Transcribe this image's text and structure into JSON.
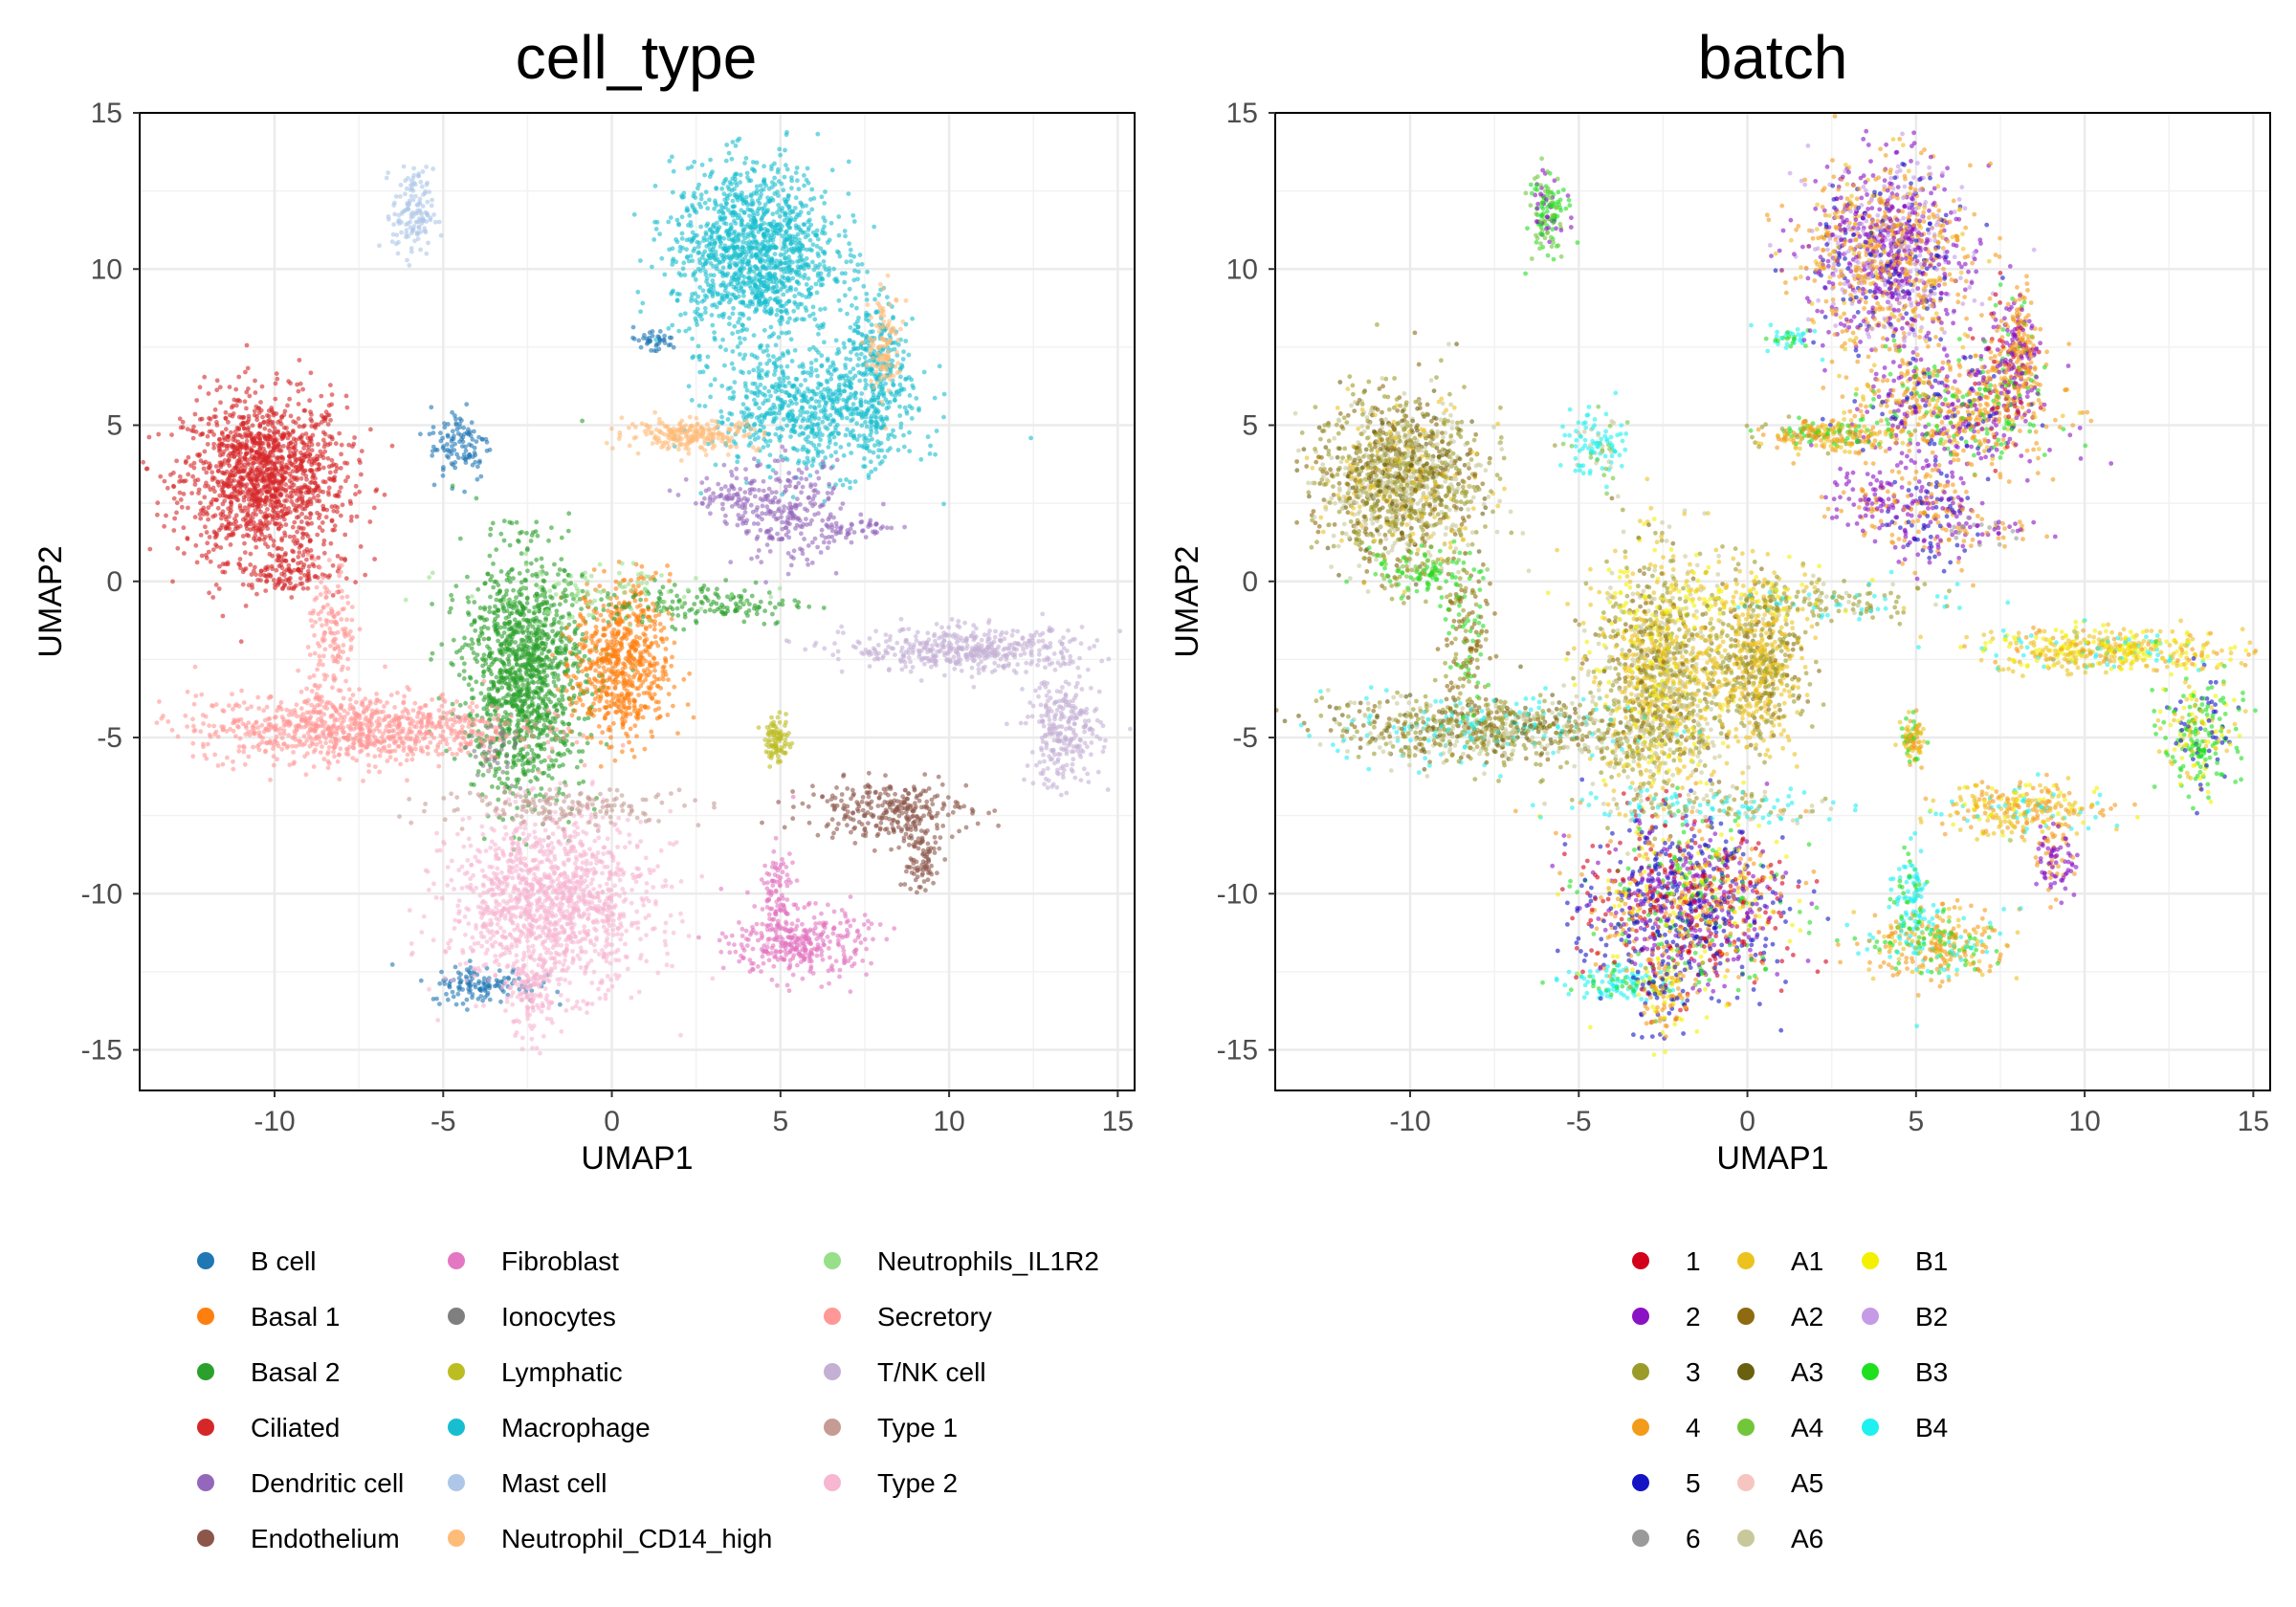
{
  "chart_data": [
    {
      "type": "scatter",
      "title": "cell_type",
      "xlabel": "UMAP1",
      "ylabel": "UMAP2",
      "xlim": [
        -14,
        15.5
      ],
      "ylim": [
        -16.3,
        15
      ],
      "xticks": [
        -10,
        -5,
        0,
        5,
        10,
        15
      ],
      "yticks": [
        -15,
        -10,
        -5,
        0,
        5,
        10,
        15
      ],
      "grid": true,
      "legend_position": "bottom",
      "legend_columns": 3,
      "categories": [
        {
          "name": "B cell",
          "color": "#1f77b4"
        },
        {
          "name": "Basal 1",
          "color": "#ff7f0e"
        },
        {
          "name": "Basal 2",
          "color": "#2ca02c"
        },
        {
          "name": "Ciliated",
          "color": "#d62728"
        },
        {
          "name": "Dendritic cell",
          "color": "#9467bd"
        },
        {
          "name": "Endothelium",
          "color": "#8c564b"
        },
        {
          "name": "Fibroblast",
          "color": "#e377c2"
        },
        {
          "name": "Ionocytes",
          "color": "#7f7f7f"
        },
        {
          "name": "Lymphatic",
          "color": "#bcbd22"
        },
        {
          "name": "Macrophage",
          "color": "#17becf"
        },
        {
          "name": "Mast cell",
          "color": "#aec7e8"
        },
        {
          "name": "Neutrophil_CD14_high",
          "color": "#ffbb78"
        },
        {
          "name": "Neutrophils_IL1R2",
          "color": "#98df8a"
        },
        {
          "name": "Secretory",
          "color": "#ff9896"
        },
        {
          "name": "T/NK cell",
          "color": "#c5b0d5"
        },
        {
          "name": "Type 1",
          "color": "#c49c94"
        },
        {
          "name": "Type 2",
          "color": "#f7b6d2"
        }
      ],
      "clusters": [
        {
          "category": "Ciliated",
          "cx": -10.3,
          "cy": 3.3,
          "sx": 1.2,
          "sy": 1.3,
          "n": 1400
        },
        {
          "category": "Ciliated",
          "cx": -9.6,
          "cy": 0.3,
          "sx": 0.8,
          "sy": 0.35,
          "n": 120
        },
        {
          "category": "Mast cell",
          "cx": -5.9,
          "cy": 11.8,
          "sx": 0.3,
          "sy": 0.7,
          "n": 140
        },
        {
          "category": "B cell",
          "cx": -4.5,
          "cy": 4.4,
          "sx": 0.45,
          "sy": 0.6,
          "n": 110
        },
        {
          "category": "B cell",
          "cx": -3.8,
          "cy": -12.9,
          "sx": 0.8,
          "sy": 0.3,
          "n": 130
        },
        {
          "category": "B cell",
          "cx": 1.2,
          "cy": 7.7,
          "sx": 0.4,
          "sy": 0.2,
          "n": 40
        },
        {
          "category": "Macrophage",
          "cx": 4.2,
          "cy": 10.5,
          "sx": 1.2,
          "sy": 1.4,
          "n": 1300
        },
        {
          "category": "Macrophage",
          "cx": 6.0,
          "cy": 5.5,
          "sx": 1.5,
          "sy": 1.0,
          "n": 700
        },
        {
          "category": "Macrophage",
          "cx": 7.7,
          "cy": 6.8,
          "sx": 0.5,
          "sy": 1.2,
          "n": 250
        },
        {
          "category": "Neutrophil_CD14_high",
          "cx": 2.4,
          "cy": 4.7,
          "sx": 1.0,
          "sy": 0.25,
          "n": 220
        },
        {
          "category": "Neutrophil_CD14_high",
          "cx": 8.1,
          "cy": 7.6,
          "sx": 0.25,
          "sy": 0.8,
          "n": 110
        },
        {
          "category": "Dendritic cell",
          "cx": 5.2,
          "cy": 2.2,
          "sx": 0.8,
          "sy": 0.8,
          "n": 240
        },
        {
          "category": "Dendritic cell",
          "cx": 3.5,
          "cy": 2.6,
          "sx": 0.6,
          "sy": 0.4,
          "n": 70
        },
        {
          "category": "Dendritic cell",
          "cx": 7.2,
          "cy": 1.7,
          "sx": 0.7,
          "sy": 0.2,
          "n": 50
        },
        {
          "category": "Basal 2",
          "cx": -2.6,
          "cy": -3.0,
          "sx": 0.9,
          "sy": 1.9,
          "n": 1300
        },
        {
          "category": "Basal 1",
          "cx": 0.3,
          "cy": -2.6,
          "sx": 0.7,
          "sy": 1.3,
          "n": 650
        },
        {
          "category": "Basal 2",
          "cx": 2.7,
          "cy": -0.7,
          "sx": 1.6,
          "sy": 0.35,
          "n": 150
        },
        {
          "category": "Secretory",
          "cx": -7.6,
          "cy": -4.7,
          "sx": 2.4,
          "sy": 0.55,
          "n": 900
        },
        {
          "category": "Secretory",
          "cx": -8.3,
          "cy": -1.8,
          "sx": 0.35,
          "sy": 1.2,
          "n": 150
        },
        {
          "category": "Type 2",
          "cx": -1.8,
          "cy": -10.3,
          "sx": 1.5,
          "sy": 1.4,
          "n": 1300
        },
        {
          "category": "Type 2",
          "cx": -2.5,
          "cy": -13.3,
          "sx": 0.35,
          "sy": 0.7,
          "n": 120
        },
        {
          "category": "Type 1",
          "cx": -1.2,
          "cy": -7.2,
          "sx": 2.0,
          "sy": 0.3,
          "n": 160
        },
        {
          "category": "T/NK cell",
          "cx": 10.6,
          "cy": -2.2,
          "sx": 1.8,
          "sy": 0.35,
          "n": 450
        },
        {
          "category": "T/NK cell",
          "cx": 13.4,
          "cy": -4.8,
          "sx": 0.55,
          "sy": 0.9,
          "n": 260
        },
        {
          "category": "Lymphatic",
          "cx": 4.9,
          "cy": -5.1,
          "sx": 0.18,
          "sy": 0.35,
          "n": 90
        },
        {
          "category": "Endothelium",
          "cx": 8.2,
          "cy": -7.3,
          "sx": 1.2,
          "sy": 0.45,
          "n": 280
        },
        {
          "category": "Endothelium",
          "cx": 9.1,
          "cy": -8.9,
          "sx": 0.3,
          "sy": 0.6,
          "n": 90
        },
        {
          "category": "Fibroblast",
          "cx": 5.6,
          "cy": -11.6,
          "sx": 1.0,
          "sy": 0.55,
          "n": 330
        },
        {
          "category": "Fibroblast",
          "cx": 4.9,
          "cy": -9.9,
          "sx": 0.25,
          "sy": 0.7,
          "n": 90
        },
        {
          "category": "Neutrophils_IL1R2",
          "cx": -0.5,
          "cy": -0.4,
          "sx": 2.0,
          "sy": 0.5,
          "n": 90
        },
        {
          "category": "Ionocytes",
          "cx": -3.5,
          "cy": -5.5,
          "sx": 0.5,
          "sy": 0.5,
          "n": 40
        }
      ]
    },
    {
      "type": "scatter",
      "title": "batch",
      "xlabel": "UMAP1",
      "ylabel": "UMAP2",
      "xlim": [
        -14,
        15.5
      ],
      "ylim": [
        -16.3,
        15
      ],
      "xticks": [
        -10,
        -5,
        0,
        5,
        10,
        15
      ],
      "yticks": [
        -15,
        -10,
        -5,
        0,
        5,
        10,
        15
      ],
      "grid": true,
      "legend_position": "bottom",
      "legend_columns": 3,
      "categories": [
        {
          "name": "1",
          "color": "#d2001a"
        },
        {
          "name": "2",
          "color": "#8b11c4"
        },
        {
          "name": "3",
          "color": "#9b9b2a"
        },
        {
          "name": "4",
          "color": "#f39b1a"
        },
        {
          "name": "5",
          "color": "#1414c4"
        },
        {
          "name": "6",
          "color": "#9a9a9a"
        },
        {
          "name": "A1",
          "color": "#ecc21e"
        },
        {
          "name": "A2",
          "color": "#8e6a10"
        },
        {
          "name": "A3",
          "color": "#6b6010"
        },
        {
          "name": "A4",
          "color": "#72c63a"
        },
        {
          "name": "A5",
          "color": "#f7c5c0"
        },
        {
          "name": "A6",
          "color": "#c8c89a"
        },
        {
          "name": "B1",
          "color": "#f3f000"
        },
        {
          "name": "B2",
          "color": "#c59ae6"
        },
        {
          "name": "B3",
          "color": "#1fe01f"
        },
        {
          "name": "B4",
          "color": "#1ff0f0"
        }
      ],
      "clusters": [
        {
          "mix": {
            "3": 3,
            "A6": 3,
            "A2": 2,
            "A3": 1,
            "A1": 1
          },
          "cx": -10.3,
          "cy": 3.3,
          "sx": 1.2,
          "sy": 1.3,
          "n": 1400
        },
        {
          "mix": {
            "B3": 3,
            "A4": 1,
            "3": 1
          },
          "cx": -9.6,
          "cy": 0.3,
          "sx": 0.8,
          "sy": 0.35,
          "n": 120
        },
        {
          "mix": {
            "B3": 3,
            "A4": 2,
            "2": 1
          },
          "cx": -5.9,
          "cy": 11.8,
          "sx": 0.3,
          "sy": 0.7,
          "n": 140
        },
        {
          "mix": {
            "B4": 3,
            "A4": 1,
            "A6": 1
          },
          "cx": -4.5,
          "cy": 4.4,
          "sx": 0.45,
          "sy": 0.6,
          "n": 110
        },
        {
          "mix": {
            "B4": 3,
            "B3": 1
          },
          "cx": -3.8,
          "cy": -12.9,
          "sx": 0.8,
          "sy": 0.3,
          "n": 130
        },
        {
          "mix": {
            "B4": 2,
            "B3": 2
          },
          "cx": 1.2,
          "cy": 7.7,
          "sx": 0.4,
          "sy": 0.2,
          "n": 40
        },
        {
          "mix": {
            "2": 3,
            "4": 3,
            "B2": 2,
            "5": 1,
            "A1": 1
          },
          "cx": 4.2,
          "cy": 10.5,
          "sx": 1.2,
          "sy": 1.4,
          "n": 1300
        },
        {
          "mix": {
            "4": 3,
            "2": 2,
            "B3": 1,
            "5": 1,
            "A1": 1
          },
          "cx": 6.0,
          "cy": 5.5,
          "sx": 1.5,
          "sy": 1.0,
          "n": 700
        },
        {
          "mix": {
            "2": 2,
            "4": 2,
            "1": 1,
            "B3": 1
          },
          "cx": 7.7,
          "cy": 6.8,
          "sx": 0.5,
          "sy": 1.2,
          "n": 250
        },
        {
          "mix": {
            "4": 2,
            "A1": 2,
            "B3": 1,
            "3": 1
          },
          "cx": 2.4,
          "cy": 4.7,
          "sx": 1.0,
          "sy": 0.25,
          "n": 220
        },
        {
          "mix": {
            "4": 2,
            "2": 1
          },
          "cx": 8.1,
          "cy": 7.6,
          "sx": 0.25,
          "sy": 0.8,
          "n": 110
        },
        {
          "mix": {
            "2": 2,
            "4": 2,
            "5": 1
          },
          "cx": 5.2,
          "cy": 2.2,
          "sx": 0.8,
          "sy": 0.8,
          "n": 240
        },
        {
          "mix": {
            "2": 2,
            "4": 1
          },
          "cx": 3.5,
          "cy": 2.6,
          "sx": 0.6,
          "sy": 0.4,
          "n": 70
        },
        {
          "mix": {
            "2": 1,
            "4": 1,
            "6": 1
          },
          "cx": 7.2,
          "cy": 1.7,
          "sx": 0.7,
          "sy": 0.2,
          "n": 50
        },
        {
          "mix": {
            "A1": 3,
            "3": 2,
            "A6": 2,
            "A2": 1,
            "B1": 1
          },
          "cx": -2.6,
          "cy": -3.0,
          "sx": 0.9,
          "sy": 1.9,
          "n": 1300
        },
        {
          "mix": {
            "A1": 3,
            "3": 2,
            "A2": 1
          },
          "cx": 0.3,
          "cy": -2.6,
          "sx": 0.7,
          "sy": 1.3,
          "n": 650
        },
        {
          "mix": {
            "3": 2,
            "A6": 1,
            "B4": 1
          },
          "cx": 2.7,
          "cy": -0.7,
          "sx": 1.6,
          "sy": 0.35,
          "n": 150
        },
        {
          "mix": {
            "3": 2,
            "A6": 2,
            "A2": 1,
            "A3": 1,
            "B4": 1
          },
          "cx": -7.6,
          "cy": -4.7,
          "sx": 2.4,
          "sy": 0.55,
          "n": 900
        },
        {
          "mix": {
            "A2": 2,
            "3": 1,
            "B3": 1
          },
          "cx": -8.3,
          "cy": -1.8,
          "sx": 0.35,
          "sy": 1.2,
          "n": 150
        },
        {
          "mix": {
            "5": 3,
            "4": 2,
            "1": 2,
            "2": 2,
            "B1": 1,
            "B3": 1
          },
          "cx": -1.8,
          "cy": -10.3,
          "sx": 1.5,
          "sy": 1.4,
          "n": 1300
        },
        {
          "mix": {
            "B1": 2,
            "4": 2,
            "5": 1
          },
          "cx": -2.5,
          "cy": -13.3,
          "sx": 0.35,
          "sy": 0.7,
          "n": 120
        },
        {
          "mix": {
            "B4": 2,
            "3": 1,
            "A6": 1
          },
          "cx": -1.2,
          "cy": -7.2,
          "sx": 2.0,
          "sy": 0.3,
          "n": 160
        },
        {
          "mix": {
            "A1": 3,
            "B1": 2,
            "4": 1,
            "B4": 1
          },
          "cx": 10.6,
          "cy": -2.2,
          "sx": 1.8,
          "sy": 0.35,
          "n": 450
        },
        {
          "mix": {
            "B3": 3,
            "A1": 1,
            "5": 1,
            "B1": 1
          },
          "cx": 13.4,
          "cy": -4.8,
          "sx": 0.55,
          "sy": 0.9,
          "n": 260
        },
        {
          "mix": {
            "A1": 2,
            "4": 1,
            "B3": 1
          },
          "cx": 4.9,
          "cy": -5.1,
          "sx": 0.18,
          "sy": 0.35,
          "n": 90
        },
        {
          "mix": {
            "A1": 2,
            "4": 2,
            "B1": 1,
            "B4": 1
          },
          "cx": 8.2,
          "cy": -7.3,
          "sx": 1.2,
          "sy": 0.45,
          "n": 280
        },
        {
          "mix": {
            "2": 2,
            "4": 1
          },
          "cx": 9.1,
          "cy": -8.9,
          "sx": 0.3,
          "sy": 0.6,
          "n": 90
        },
        {
          "mix": {
            "4": 2,
            "B4": 1,
            "A1": 1,
            "B3": 1
          },
          "cx": 5.6,
          "cy": -11.6,
          "sx": 1.0,
          "sy": 0.55,
          "n": 330
        },
        {
          "mix": {
            "B4": 2,
            "B3": 1
          },
          "cx": 4.9,
          "cy": -9.9,
          "sx": 0.25,
          "sy": 0.7,
          "n": 90
        },
        {
          "mix": {
            "B1": 2,
            "A1": 1
          },
          "cx": -0.5,
          "cy": -0.4,
          "sx": 2.0,
          "sy": 0.5,
          "n": 90
        },
        {
          "mix": {
            "3": 1,
            "A6": 1
          },
          "cx": -3.5,
          "cy": -5.5,
          "sx": 0.5,
          "sy": 0.5,
          "n": 40
        }
      ]
    }
  ]
}
